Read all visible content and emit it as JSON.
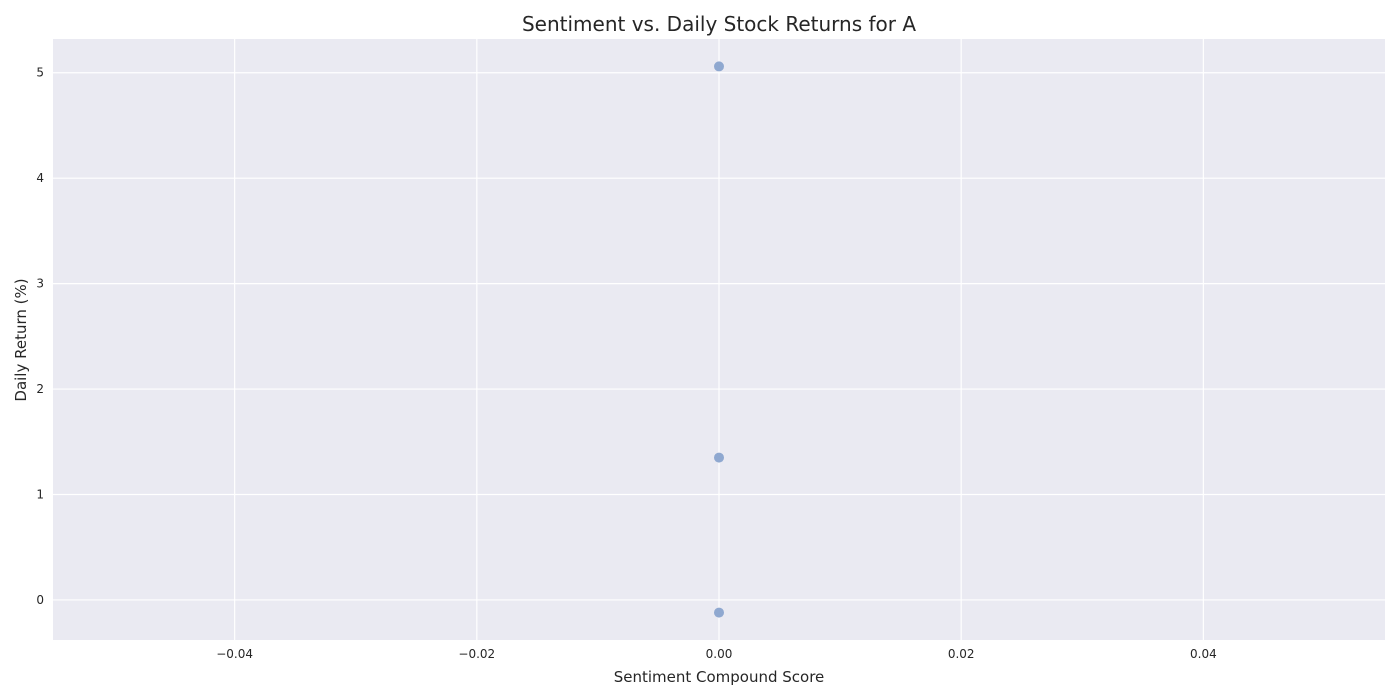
{
  "chart_data": {
    "type": "scatter",
    "title": "Sentiment vs. Daily Stock Returns for A",
    "xlabel": "Sentiment Compound Score",
    "ylabel": "Daily Return (%)",
    "xlim": [
      -0.055,
      0.055
    ],
    "ylim": [
      -0.38,
      5.32
    ],
    "xticks": [
      -0.04,
      -0.02,
      0.0,
      0.02,
      0.04
    ],
    "xtick_labels": [
      "−0.04",
      "−0.02",
      "0.00",
      "0.02",
      "0.04"
    ],
    "yticks": [
      0,
      1,
      2,
      3,
      4,
      5
    ],
    "ytick_labels": [
      "0",
      "1",
      "2",
      "3",
      "4",
      "5"
    ],
    "grid": true,
    "series": [
      {
        "points": [
          {
            "x": 0.0,
            "y": 5.06
          },
          {
            "x": 0.0,
            "y": 1.35
          },
          {
            "x": 0.0,
            "y": -0.12
          }
        ]
      }
    ],
    "colors": {
      "plot_background": "#EAEAF2",
      "grid": "#FFFFFF",
      "marker": "#8FA8D0"
    }
  }
}
